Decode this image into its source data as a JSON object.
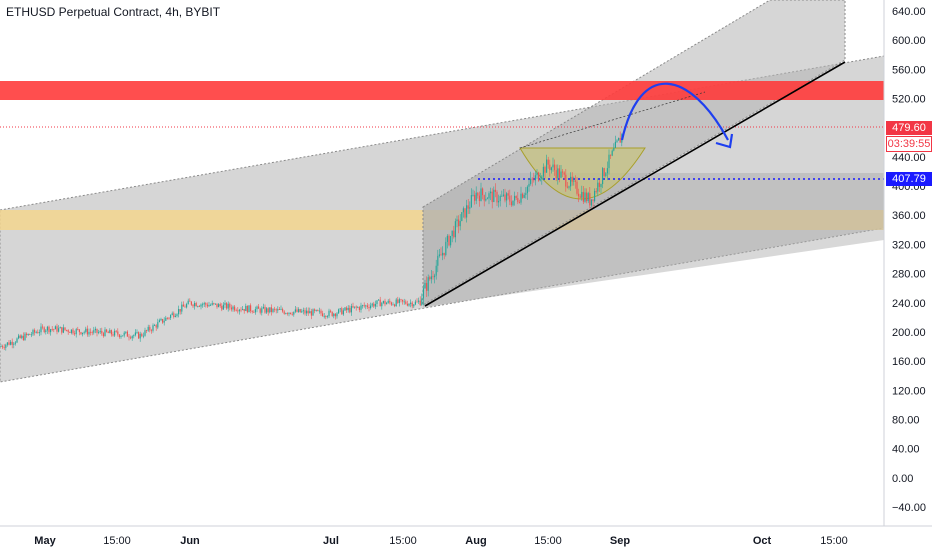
{
  "chart_title": "ETHUSD Perpetual Contract, 4h, BYBIT",
  "badges": {
    "last_price": "479.60",
    "countdown": "03:39:55",
    "level": "407.79"
  },
  "colors": {
    "up": "#26a69a",
    "down": "#ef5350",
    "channel": "#9e9e9e",
    "resistance": "#ff3b3b",
    "support": "#f5d68a",
    "cup": "#c9c36a",
    "arrow": "#1e3ff0",
    "level_line": "#1a1aff",
    "last_price": "#f23645"
  },
  "chart_data": {
    "type": "candlestick",
    "title": "ETHUSD Perpetual Contract, 4h, BYBIT",
    "y_axis": {
      "position": "right",
      "range": [
        -60,
        660
      ],
      "ticks": [
        "640.00",
        "600.00",
        "560.00",
        "520.00",
        "480.00",
        "440.00",
        "400.00",
        "360.00",
        "320.00",
        "280.00",
        "240.00",
        "200.00",
        "160.00",
        "120.00",
        "80.00",
        "40.00",
        "0.00",
        "−40.00"
      ]
    },
    "x_axis": {
      "ticks": [
        {
          "label": "May",
          "bold": true
        },
        {
          "label": "15:00",
          "bold": false
        },
        {
          "label": "Jun",
          "bold": true
        },
        {
          "label": "Jul",
          "bold": true
        },
        {
          "label": "15:00",
          "bold": false
        },
        {
          "label": "Aug",
          "bold": true
        },
        {
          "label": "15:00",
          "bold": false
        },
        {
          "label": "Sep",
          "bold": true
        },
        {
          "label": "Oct",
          "bold": true
        },
        {
          "label": "15:00",
          "bold": false
        }
      ]
    },
    "price_path": [
      [
        "Apr 22",
        180
      ],
      [
        "May 1",
        205
      ],
      [
        "May 10",
        200
      ],
      [
        "May 20",
        195
      ],
      [
        "Jun 1",
        240
      ],
      [
        "Jun 15",
        230
      ],
      [
        "Jul 1",
        225
      ],
      [
        "Jul 15",
        240
      ],
      [
        "Jul 22",
        240
      ],
      [
        "Jul 28",
        330
      ],
      [
        "Aug 1",
        390
      ],
      [
        "Aug 10",
        380
      ],
      [
        "Aug 15",
        430
      ],
      [
        "Aug 25",
        380
      ],
      [
        "Sep 1",
        470
      ]
    ],
    "levels": [
      {
        "name": "Resistance zone",
        "range": [
          518,
          545
        ]
      },
      {
        "name": "Support zone",
        "range": [
          340,
          368
        ]
      },
      {
        "value": 479.6
      },
      {
        "value": 407.79
      }
    ],
    "annotations": [
      "Rising channel",
      "Cup pattern",
      "Ascending trendline",
      "Projected path arrow"
    ],
    "grid": false,
    "legend": "none"
  }
}
